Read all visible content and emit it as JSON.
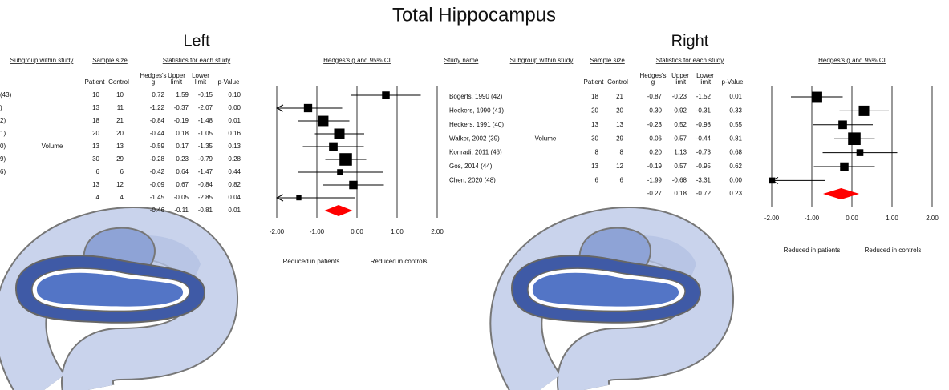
{
  "title": "Total Hippocampus",
  "chart_data": [
    {
      "type": "forest",
      "title": "Left",
      "headers": {
        "subgroup": "Subgroup within study",
        "sample_size": "Sample size",
        "statistics": "Statistics for each study",
        "ci": "Hedges's g and 95% CI",
        "columns": [
          [
            "Patient"
          ],
          [
            "Control"
          ],
          [
            "Hedges's",
            "g"
          ],
          [
            "Upper",
            "limit"
          ],
          [
            "Lower",
            "limit"
          ],
          [
            "p-Value"
          ]
        ]
      },
      "subgroup": "Volume",
      "studies": [
        "(43)",
        ")",
        "2)",
        "1)",
        "0)",
        "9)",
        "6)",
        null,
        null
      ],
      "patient": [
        10,
        13,
        18,
        20,
        13,
        30,
        6,
        13,
        4
      ],
      "control": [
        10,
        11,
        21,
        20,
        13,
        29,
        6,
        12,
        4
      ],
      "values": [
        0.72,
        -1.22,
        -0.84,
        -0.44,
        -0.59,
        -0.28,
        -0.42,
        -0.09,
        -1.45
      ],
      "value_labels": [
        "0.72",
        "-1.22",
        "-0.84",
        "-0.44",
        "-0.59",
        "-0.28",
        "-0.42",
        "-0.09",
        "-1.45"
      ],
      "upper": [
        1.59,
        -0.37,
        -0.19,
        0.18,
        0.17,
        0.23,
        0.64,
        0.67,
        -0.05
      ],
      "upper_labels": [
        "1.59",
        "-0.37",
        "-0.19",
        "0.18",
        "0.17",
        "0.23",
        "0.64",
        "0.67",
        "-0.05"
      ],
      "lower": [
        -0.15,
        -2.07,
        -1.48,
        -1.05,
        -1.35,
        -0.79,
        -1.47,
        -0.84,
        -2.85
      ],
      "lower_labels": [
        "-0.15",
        "-2.07",
        "-1.48",
        "-1.05",
        "-1.35",
        "-0.79",
        "-1.47",
        "-0.84",
        "-2.85"
      ],
      "p_values": [
        "0.10",
        "0.00",
        "0.01",
        "0.16",
        "0.13",
        "0.28",
        "0.44",
        "0.82",
        "0.04"
      ],
      "summary": {
        "value": -0.46,
        "upper": -0.11,
        "lower": -0.81,
        "p_value": "0.01"
      },
      "xlim": [
        -2,
        2
      ],
      "xticks": [
        {
          "value": -2,
          "label": "-2.00"
        },
        {
          "value": -1,
          "label": "-1.00"
        },
        {
          "value": 0,
          "label": "0.00"
        },
        {
          "value": 1,
          "label": "1.00"
        },
        {
          "value": 2,
          "label": "2.00"
        }
      ],
      "note_left": "Reduced in patients",
      "note_right": "Reduced in controls",
      "color": "#000000",
      "summary_color": "#ff0000",
      "grid": true
    },
    {
      "type": "forest",
      "title": "Right",
      "headers": {
        "study": "Study name",
        "subgroup": "Subgroup within study",
        "sample_size": "Sample size",
        "statistics": "Statistics for each study",
        "ci": "Hedges's g and 95% CI",
        "columns": [
          [
            "Patient"
          ],
          [
            "Control"
          ],
          [
            "Hedges's",
            "g"
          ],
          [
            "Upper",
            "limit"
          ],
          [
            "Lower",
            "limit"
          ],
          [
            "p-Value"
          ]
        ]
      },
      "subgroup": "Volume",
      "studies": [
        "Bogerts, 1990 (42)",
        "Heckers, 1990 (41)",
        "Heckers, 1991 (40)",
        "Walker, 2002 (39)",
        "Konradi, 2011 (46)",
        "Gos, 2014 (44)",
        "Chen, 2020 (48)"
      ],
      "patient": [
        18,
        20,
        13,
        30,
        8,
        13,
        6
      ],
      "control": [
        21,
        20,
        13,
        29,
        8,
        12,
        6
      ],
      "values": [
        -0.87,
        0.3,
        -0.23,
        0.06,
        0.2,
        -0.19,
        -1.99
      ],
      "value_labels": [
        "-0.87",
        "0.30",
        "-0.23",
        "0.06",
        "0.20",
        "-0.19",
        "-1.99"
      ],
      "upper": [
        -0.23,
        0.92,
        0.52,
        0.57,
        1.13,
        0.57,
        -0.68
      ],
      "upper_labels": [
        "-0.23",
        "0.92",
        "0.52",
        "0.57",
        "1.13",
        "0.57",
        "-0.68"
      ],
      "lower": [
        -1.52,
        -0.31,
        -0.98,
        -0.44,
        -0.73,
        -0.95,
        -3.31
      ],
      "lower_labels": [
        "-1.52",
        "-0.31",
        "-0.98",
        "-0.44",
        "-0.73",
        "-0.95",
        "-3.31"
      ],
      "p_values": [
        "0.01",
        "0.33",
        "0.55",
        "0.81",
        "0.68",
        "0.62",
        "0.00"
      ],
      "summary": {
        "value": -0.27,
        "upper": 0.18,
        "lower": -0.72,
        "p_value": "0.23"
      },
      "xlim": [
        -2,
        2
      ],
      "xticks": [
        {
          "value": -2,
          "label": "-2.00"
        },
        {
          "value": -1,
          "label": "-1.00"
        },
        {
          "value": 0,
          "label": "0.00"
        },
        {
          "value": 1,
          "label": "1.00"
        },
        {
          "value": 2,
          "label": "2.00"
        }
      ],
      "note_left": "Reduced in patients",
      "note_right": "Reduced in controls",
      "color": "#000000",
      "summary_color": "#ff0000",
      "grid": true
    }
  ]
}
